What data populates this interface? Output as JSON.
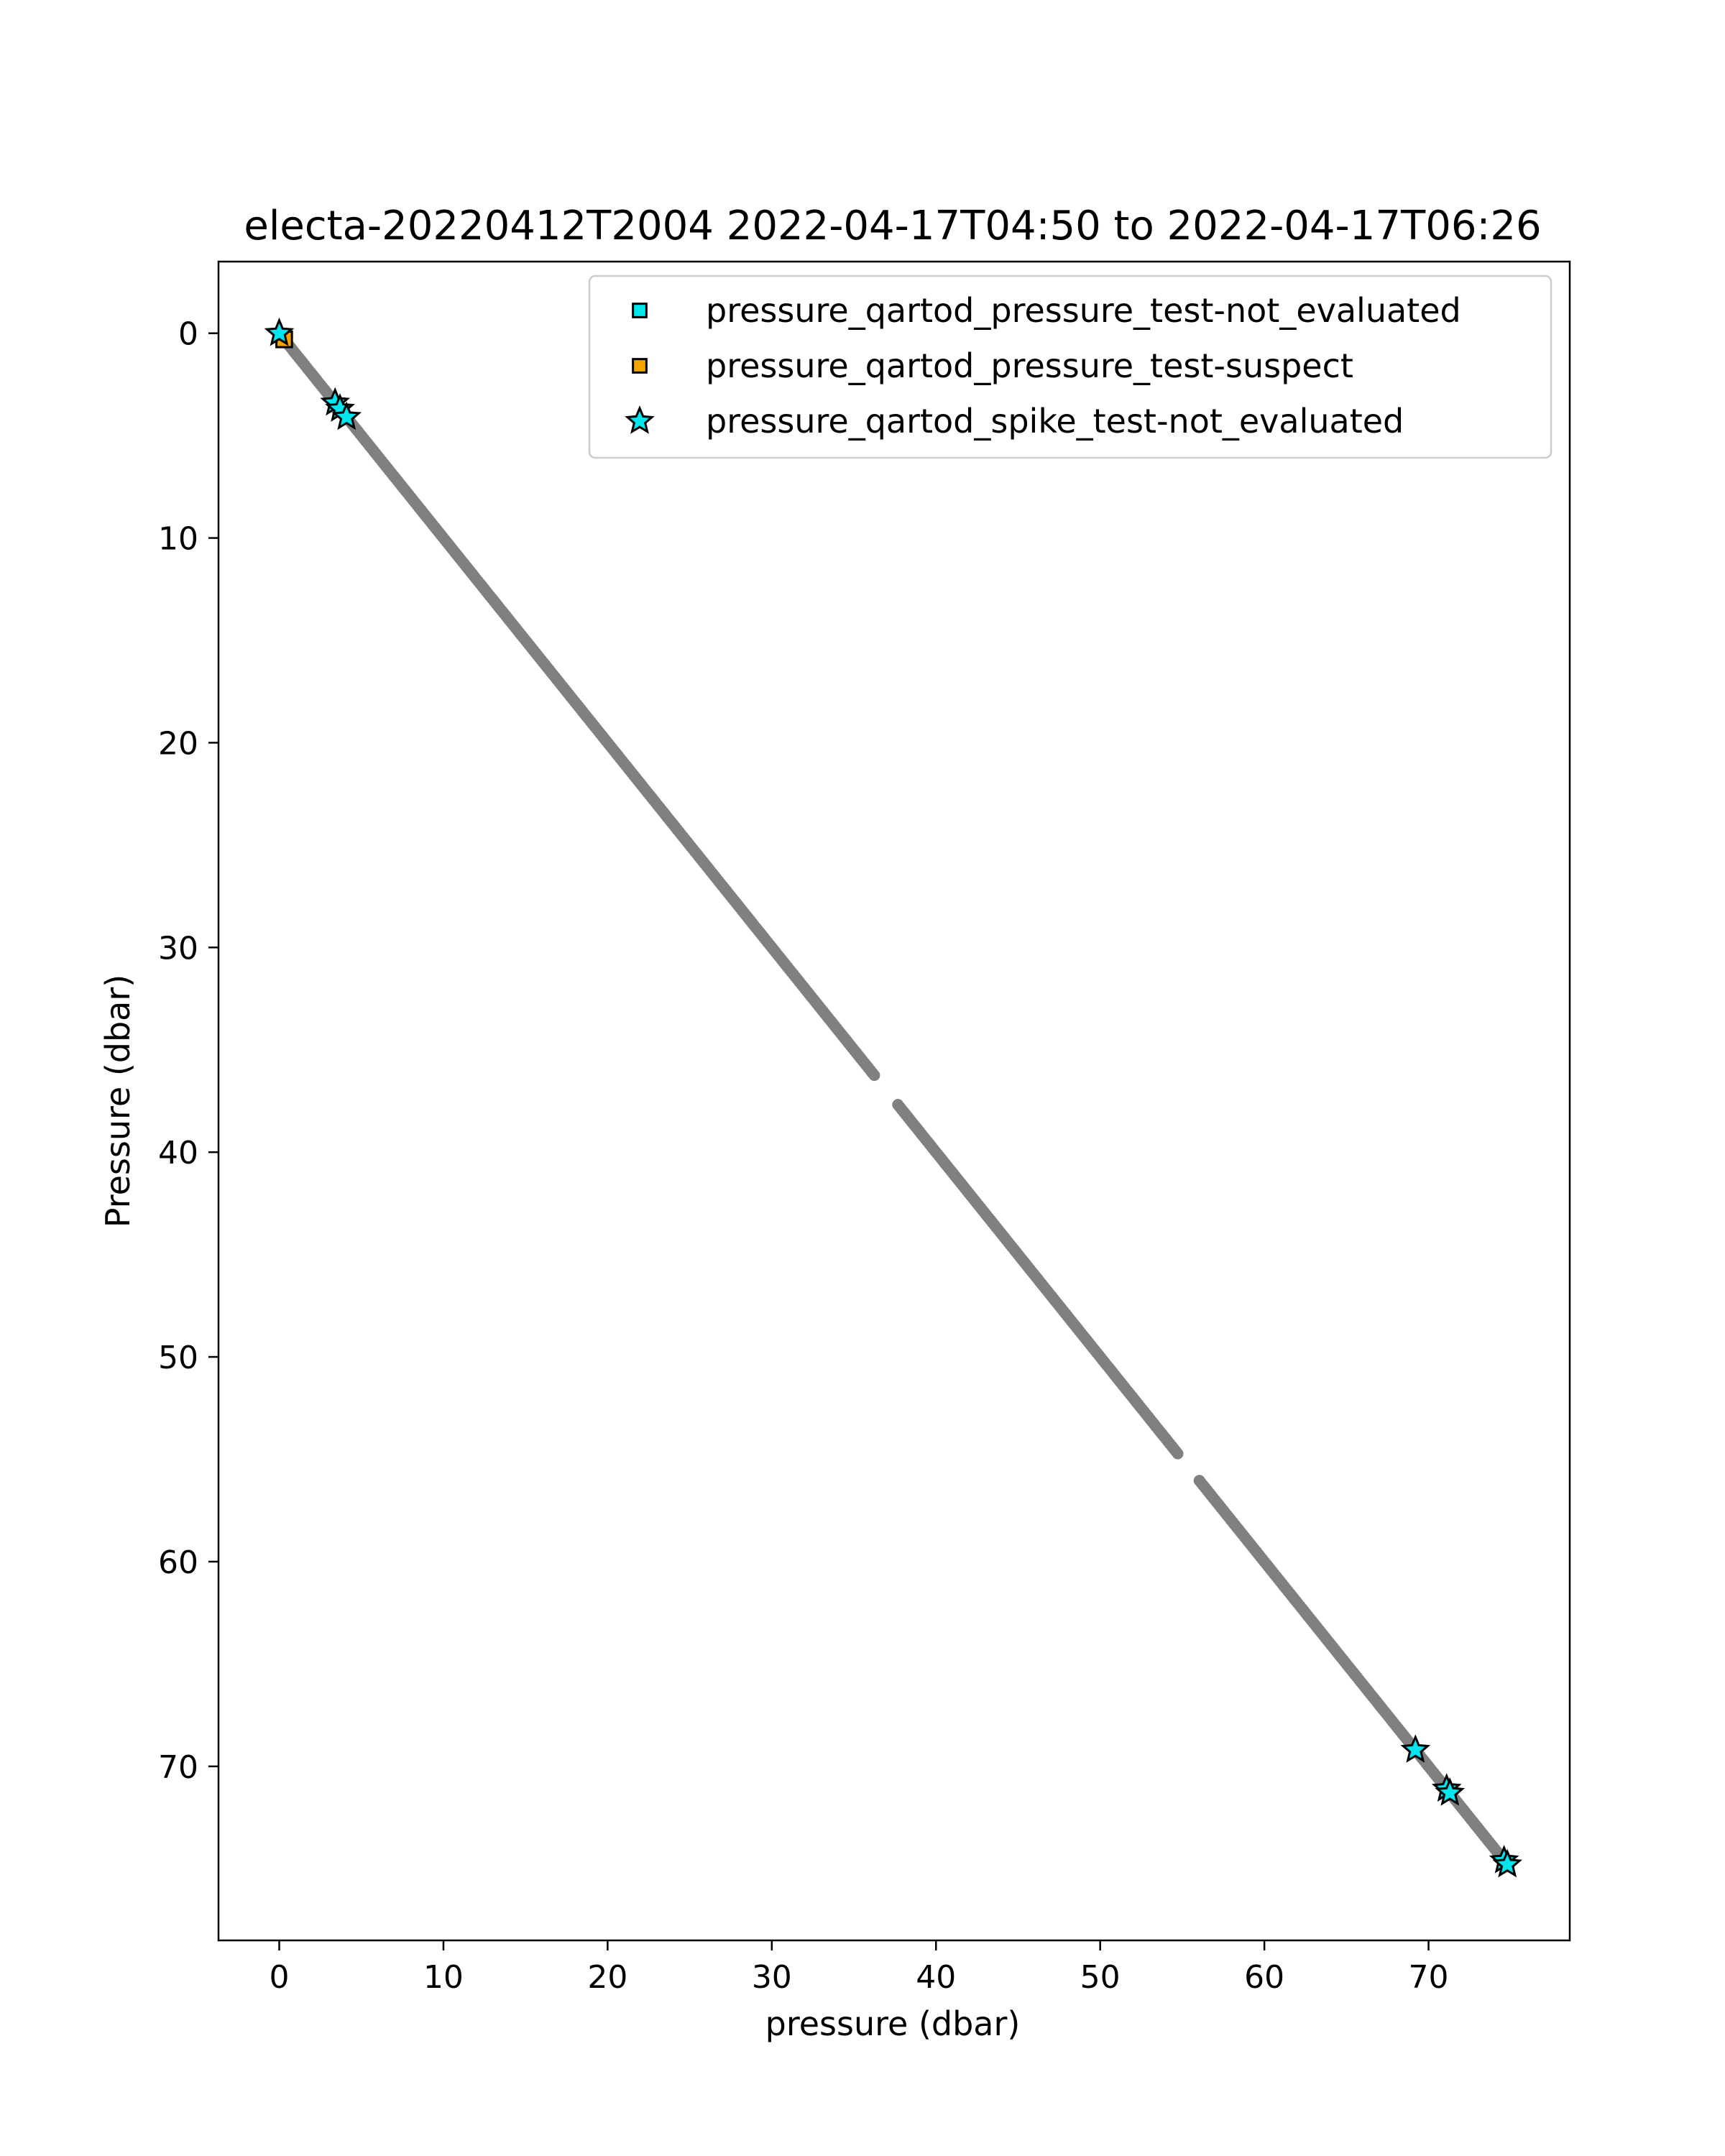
{
  "chart_data": {
    "type": "scatter",
    "title": "electa-20220412T2004 2022-04-17T04:50 to 2022-04-17T06:26",
    "xlabel": "pressure (dbar)",
    "ylabel": "Pressure (dbar)",
    "xlim": [
      -3.7,
      78.6
    ],
    "ylim": [
      78.5,
      -3.5
    ],
    "y_inverted": true,
    "xticks": [
      0,
      10,
      20,
      30,
      40,
      50,
      60,
      70
    ],
    "yticks": [
      0,
      10,
      20,
      30,
      40,
      50,
      60,
      70
    ],
    "grid": false,
    "legend_position": "top-right",
    "base_series": {
      "color": "#808080",
      "marker": "circle",
      "x_start": 0.0,
      "x_end": 74.8,
      "gaps": [
        [
          36.3,
          37.6
        ],
        [
          54.8,
          56.0
        ]
      ]
    },
    "series": [
      {
        "name": "pressure_qartod_pressure_test-not_evaluated",
        "marker": "square",
        "color": "#00e5ee",
        "points": []
      },
      {
        "name": "pressure_qartod_pressure_test-suspect",
        "marker": "square",
        "color": "#f5a300",
        "points": [
          [
            0.3,
            0.3
          ]
        ]
      },
      {
        "name": "pressure_qartod_spike_test-not_evaluated",
        "marker": "star",
        "color": "#00e5ee",
        "points": [
          [
            0.0,
            0.0
          ],
          [
            3.4,
            3.4
          ],
          [
            3.7,
            3.7
          ],
          [
            4.1,
            4.1
          ],
          [
            69.2,
            69.2
          ],
          [
            71.1,
            71.1
          ],
          [
            71.3,
            71.3
          ],
          [
            74.6,
            74.6
          ],
          [
            74.8,
            74.8
          ]
        ]
      }
    ]
  }
}
